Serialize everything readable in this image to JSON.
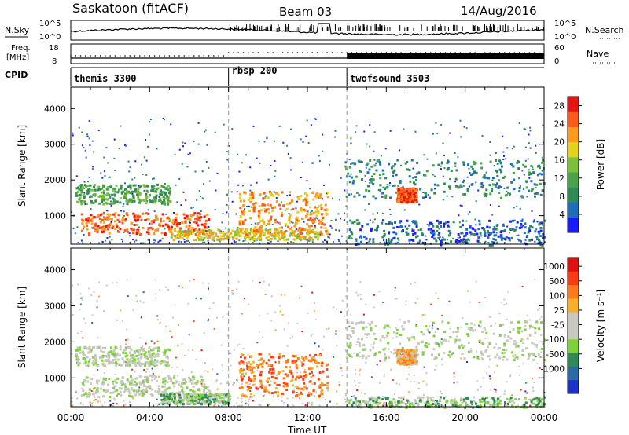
{
  "header": {
    "radar": "Saskatoon (fitACF)",
    "beam": "Beam 03",
    "date": "14/Aug/2016"
  },
  "top_panels": {
    "nsky_label": "N.Sky",
    "nsky_ticks": [
      "10^5",
      "10^0"
    ],
    "nsearch_label": "N.Search",
    "freq_label_1": "Freq.",
    "freq_label_2": "[MHz]",
    "freq_ticks": [
      "18",
      "8"
    ],
    "nave_ticks": [
      "60",
      "0"
    ],
    "nave_label": "Nave",
    "cpid_label": "CPID",
    "cpid_segments": [
      {
        "name": "themis 3300",
        "start": 0,
        "end": 8
      },
      {
        "name": "rbsp 200",
        "start": 8,
        "end": 14
      },
      {
        "name": "twofsound 3503",
        "start": 14,
        "end": 24
      }
    ]
  },
  "chart_data": [
    {
      "type": "heatmap",
      "name": "power",
      "ylabel": "Slant Range [km]",
      "yticks": [
        "1000",
        "2000",
        "3000",
        "4000"
      ],
      "ylim": [
        200,
        4600
      ],
      "xlim": [
        0,
        24
      ],
      "colorbar_label": "Power [dB]",
      "colorbar_ticks": [
        "4",
        "8",
        "12",
        "16",
        "20",
        "24",
        "28"
      ],
      "colors": [
        "#1a1aff",
        "#1f6fb8",
        "#2e8b57",
        "#4aa34a",
        "#7dc13a",
        "#e6d21a",
        "#ff9b1a",
        "#ff5a1a",
        "#e81414"
      ],
      "features": [
        {
          "t0": 0.2,
          "t1": 5.0,
          "r0": 1350,
          "r1": 1900,
          "level": 3
        },
        {
          "t0": 0.5,
          "t1": 7.0,
          "r0": 500,
          "r1": 1100,
          "level": 7
        },
        {
          "t0": 5.0,
          "t1": 12.5,
          "r0": 350,
          "r1": 650,
          "level": 5
        },
        {
          "t0": 8.5,
          "t1": 13.0,
          "r0": 500,
          "r1": 1700,
          "level": 6
        },
        {
          "t0": 13.8,
          "t1": 24,
          "r0": 1500,
          "r1": 2600,
          "level": 2
        },
        {
          "t0": 16.5,
          "t1": 17.5,
          "r0": 1400,
          "r1": 1800,
          "level": 7
        },
        {
          "t0": 14.0,
          "t1": 24,
          "r0": 200,
          "r1": 900,
          "level": 1
        }
      ]
    },
    {
      "type": "heatmap",
      "name": "velocity",
      "ylabel": "Slant Range [km]",
      "yticks": [
        "1000",
        "2000",
        "3000",
        "4000"
      ],
      "ylim": [
        200,
        4600
      ],
      "xlim": [
        0,
        24
      ],
      "colorbar_label": "Velocity [m s⁻¹]",
      "colorbar_ticks": [
        "1000",
        "500",
        "100",
        "25",
        "-25",
        "-100",
        "-500",
        "-1000"
      ],
      "colors": [
        "#1a33cc",
        "#2a6aa8",
        "#2e8b57",
        "#7ed33a",
        "#c8c8c0",
        "#c8c8c0",
        "#f5b028",
        "#ff7a1a",
        "#ff3b14",
        "#e01010"
      ],
      "features": [
        {
          "t0": 0.2,
          "t1": 5.0,
          "r0": 1350,
          "r1": 1900,
          "level": 4
        },
        {
          "t0": 0.5,
          "t1": 7.0,
          "r0": 500,
          "r1": 1100,
          "level": 4
        },
        {
          "t0": 4.5,
          "t1": 8.0,
          "r0": 300,
          "r1": 600,
          "level": 3
        },
        {
          "t0": 8.5,
          "t1": 13.0,
          "r0": 500,
          "r1": 1700,
          "level": 7
        },
        {
          "t0": 13.8,
          "t1": 24,
          "r0": 1500,
          "r1": 2600,
          "level": 4
        },
        {
          "t0": 16.5,
          "t1": 17.5,
          "r0": 1400,
          "r1": 1800,
          "level": 6
        },
        {
          "t0": 14.0,
          "t1": 24,
          "r0": 200,
          "r1": 500,
          "level": 3
        }
      ]
    }
  ],
  "xaxis": {
    "label": "Time UT",
    "ticks": [
      "00:00",
      "04:00",
      "08:00",
      "12:00",
      "16:00",
      "20:00",
      "00:00"
    ]
  }
}
